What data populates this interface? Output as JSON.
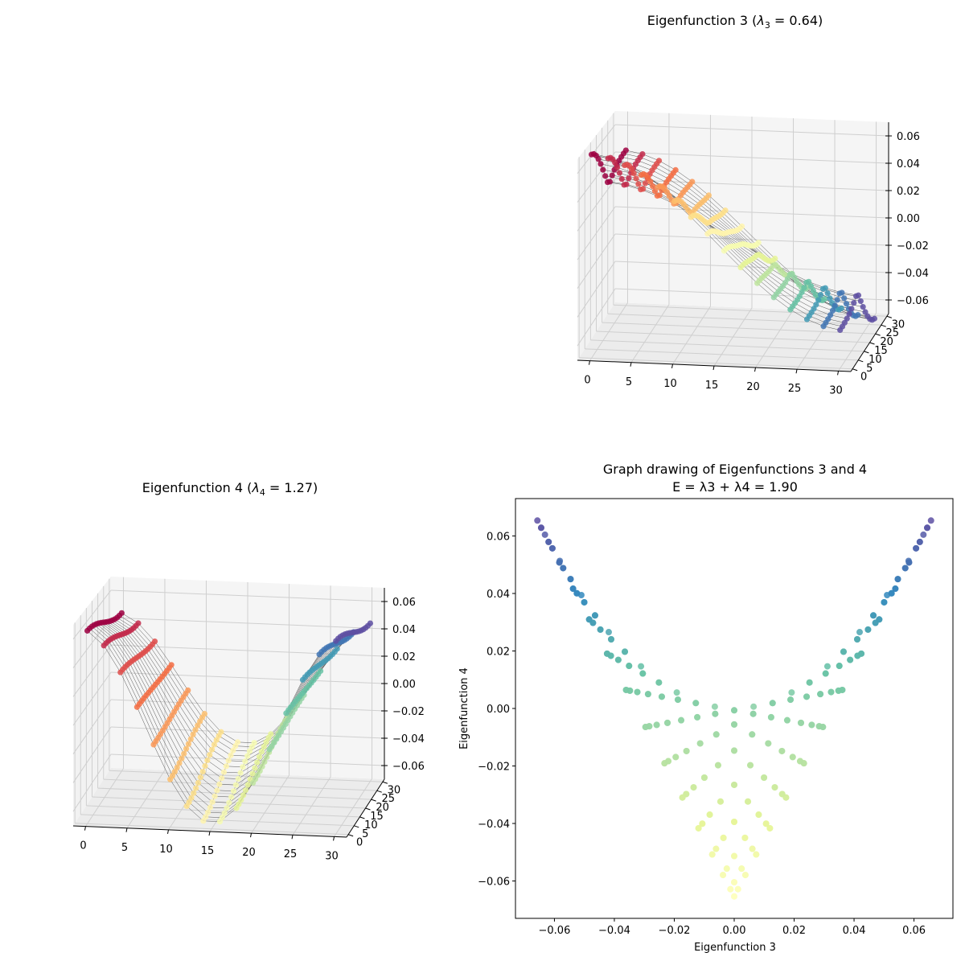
{
  "chart_data": [
    {
      "type": "scatter3d",
      "id": "ef3",
      "title_prefix": "Eigenfunction 3 (",
      "title_lambda": "λ",
      "title_sub": "3",
      "title_suffix": " = 0.64)",
      "eigenvalue": 0.64,
      "grid_points_per_side": 16,
      "xlim": [
        -1.5,
        31.5
      ],
      "ylim": [
        -1.5,
        31.5
      ],
      "zlim": [
        -0.07,
        0.07
      ],
      "xticks": [
        "0",
        "5",
        "10",
        "15",
        "20",
        "25",
        "30"
      ],
      "yticks": [
        "0",
        "5",
        "10",
        "15",
        "20",
        "25",
        "30"
      ],
      "zticks": [
        "−0.06",
        "−0.04",
        "−0.02",
        "0.00",
        "0.02",
        "0.04",
        "0.06"
      ],
      "amplitude": 0.066,
      "colormap": "Spectral"
    },
    {
      "type": "scatter3d",
      "id": "ef4",
      "title_prefix": "Eigenfunction 4 (",
      "title_lambda": "λ",
      "title_sub": "4",
      "title_suffix": " = 1.27)",
      "eigenvalue": 1.27,
      "grid_points_per_side": 16,
      "xlim": [
        -1.5,
        31.5
      ],
      "ylim": [
        -1.5,
        31.5
      ],
      "zlim": [
        -0.07,
        0.07
      ],
      "xticks": [
        "0",
        "5",
        "10",
        "15",
        "20",
        "25",
        "30"
      ],
      "yticks": [
        "0",
        "5",
        "10",
        "15",
        "20",
        "25",
        "30"
      ],
      "zticks": [
        "−0.06",
        "−0.04",
        "−0.02",
        "0.00",
        "0.02",
        "0.04",
        "0.06"
      ],
      "amplitude": 0.066,
      "colormap": "Spectral"
    },
    {
      "type": "scatter",
      "id": "drawing",
      "title_line1": "Graph drawing of Eigenfunctions 3 and 4",
      "title_line2": "E = λ3 + λ4 = 1.90",
      "title2_prefix": "E = ",
      "title2_mid": " + ",
      "title2_suffix": " = 1.90",
      "energy": 1.9,
      "xlabel": "Eigenfunction 3",
      "ylabel": "Eigenfunction 4",
      "xlim": [
        -0.073,
        0.073
      ],
      "ylim": [
        -0.073,
        0.073
      ],
      "xticks": [
        "−0.06",
        "−0.04",
        "−0.02",
        "0.00",
        "0.02",
        "0.04",
        "0.06"
      ],
      "yticks": [
        "−0.06",
        "−0.04",
        "−0.02",
        "0.00",
        "0.02",
        "0.04",
        "0.06"
      ],
      "tick_values": [
        -0.06,
        -0.04,
        -0.02,
        0,
        0.02,
        0.04,
        0.06
      ],
      "grid_points_per_side": 16,
      "amplitude": 0.066,
      "colormap": "Spectral (upper half)"
    }
  ],
  "colors": {
    "spectral": [
      "#9e0142",
      "#d53e4f",
      "#f46d43",
      "#fdae61",
      "#fee08b",
      "#ffffbf",
      "#e6f598",
      "#abdda4",
      "#66c2a5",
      "#3288bd",
      "#5e4fa2"
    ],
    "pane": "#f2f2f2",
    "grid": "#cfcfcf"
  }
}
